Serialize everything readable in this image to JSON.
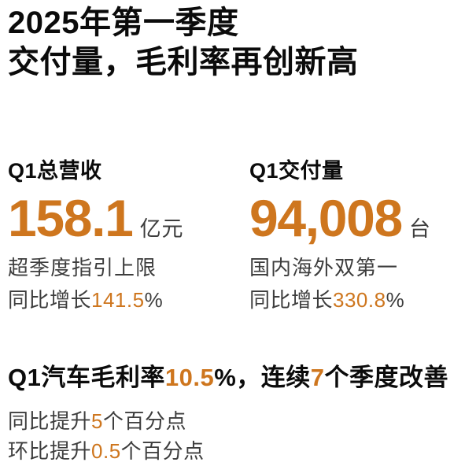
{
  "colors": {
    "accent_orange": "#ce761e",
    "heading_black": "#0b0b0b",
    "body_gray": "#3d3d3d",
    "background": "#ffffff"
  },
  "title": {
    "line1": "2025年第一季度",
    "line2": "交付量，毛利率再创新高"
  },
  "stats": [
    {
      "label": "Q1总营收",
      "value": "158.1",
      "unit": "亿元",
      "note": "超季度指引上限",
      "growth_prefix": "同比增长",
      "growth_value": "141.5",
      "growth_suffix": "%"
    },
    {
      "label": "Q1交付量",
      "value": "94,008",
      "unit": "台",
      "note": "国内海外双第一",
      "growth_prefix": "同比增长",
      "growth_value": "330.8",
      "growth_suffix": "%"
    }
  ],
  "gross_margin": {
    "headline": [
      {
        "text": "Q1汽车毛利率",
        "highlight": false
      },
      {
        "text": "10.5",
        "highlight": true
      },
      {
        "text": "%，连续",
        "highlight": false
      },
      {
        "text": "7",
        "highlight": true
      },
      {
        "text": "个季度改善",
        "highlight": false
      }
    ],
    "line1": [
      {
        "text": "同比提升",
        "highlight": false
      },
      {
        "text": "5",
        "highlight": true
      },
      {
        "text": "个百分点",
        "highlight": false
      }
    ],
    "line2": [
      {
        "text": "环比提升",
        "highlight": false
      },
      {
        "text": "0.5",
        "highlight": true
      },
      {
        "text": "个百分点",
        "highlight": false
      }
    ]
  }
}
